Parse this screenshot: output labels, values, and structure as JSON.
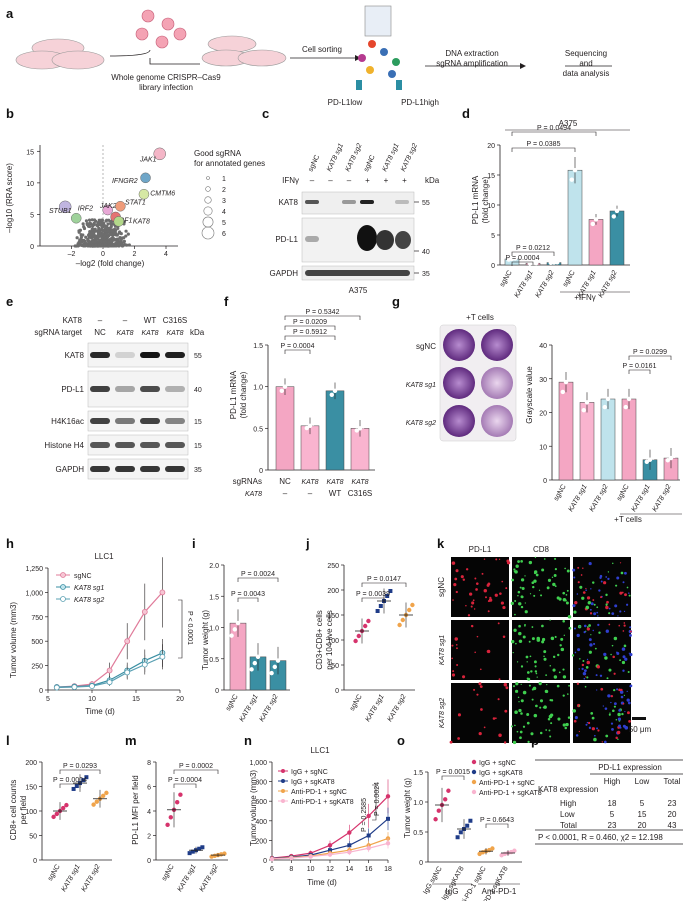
{
  "panels": [
    "a",
    "b",
    "c",
    "d",
    "e",
    "f",
    "g",
    "h",
    "i",
    "j",
    "k",
    "l",
    "m",
    "n",
    "o",
    "p"
  ],
  "a": {
    "library": "Whole genome CRISPR–Cas9\nlibrary infection",
    "sorting": "Cell sorting",
    "extraction": "DNA extraction\nsgRNA amplification",
    "sequencing": "Sequencing\nand\ndata analysis",
    "low": "PD-L1low",
    "high": "PD-L1high"
  },
  "b": {
    "ylabel": "–log10 (RRA score)",
    "xlabel": "–log2 (fold change)",
    "legend_title": "Good sgRNA\nfor annotated genes",
    "legend_values": [
      "1",
      "2",
      "3",
      "4",
      "5",
      "6"
    ],
    "genes": [
      "JAK1",
      "IFNGR2",
      "CMTM6",
      "JAK2",
      "STAT1",
      "IRF1",
      "KAT8",
      "STUB1",
      "IRF2"
    ],
    "yticks": [
      "0",
      "5",
      "10",
      "15"
    ],
    "xticks": [
      "–2",
      "0",
      "2",
      "4"
    ]
  },
  "c": {
    "lanes": [
      "sgNC",
      "KAT8 sg1",
      "KAT8 sg2",
      "sgNC",
      "KAT8 sg1",
      "KAT8 sg2"
    ],
    "ifng_label": "IFNγ",
    "ifng": [
      "–",
      "–",
      "–",
      "+",
      "+",
      "+"
    ],
    "rows": [
      "KAT8",
      "PD-L1",
      "GAPDH"
    ],
    "kda_label": "kDa",
    "kda": [
      "55",
      "40",
      "35"
    ],
    "cell": "A375"
  },
  "d": {
    "title": "A375",
    "ylabel": "PD-L1 mRNA\n(fold change)",
    "yticks": [
      "0",
      "5",
      "10",
      "15",
      "20"
    ],
    "categories": [
      "sgNC",
      "KAT8 sg1",
      "KAT8 sg2",
      "sgNC",
      "KAT8 sg1",
      "KAT8 sg2"
    ],
    "group_label": "+IFNγ",
    "pvals": [
      "P = 0.0494",
      "P = 0.0385",
      "P = 0.0212",
      "P = 0.0004"
    ]
  },
  "e": {
    "kat8_label": "KAT8",
    "kat8": [
      "–",
      "–",
      "WT",
      "C316S"
    ],
    "sgrna_label": "sgRNA target",
    "sgrna": [
      "NC",
      "KAT8",
      "KAT8",
      "KAT8"
    ],
    "rows": [
      "KAT8",
      "PD-L1",
      "H4K16ac",
      "Histone H4",
      "GAPDH"
    ],
    "kda_label": "kDa",
    "kda": [
      "55",
      "40",
      "15",
      "15",
      "35"
    ]
  },
  "f": {
    "ylabel": "PD-L1 mRNA\n(fold change)",
    "yticks": [
      "0",
      "0.5",
      "1.0",
      "1.5"
    ],
    "sgrna_label": "sgRNAs",
    "sgrna": [
      "NC",
      "KAT8",
      "KAT8",
      "KAT8"
    ],
    "kat8_label": "KAT8",
    "kat8": [
      "–",
      "–",
      "WT",
      "C316S"
    ],
    "pvals": [
      "P = 0.5342",
      "P = 0.0209",
      "P = 0.5912",
      "P = 0.0004"
    ]
  },
  "g": {
    "plus_t": "+T cells",
    "rows": [
      "sgNC",
      "KAT8 sg1",
      "KAT8 sg2"
    ],
    "ylabel": "Grayscale value",
    "yticks": [
      "0",
      "10",
      "20",
      "30",
      "40"
    ],
    "categories": [
      "sgNC",
      "KAT8 sg1",
      "KAT8 sg2",
      "sgNC",
      "KAT8 sg1",
      "KAT8 sg2"
    ],
    "group_label": "+T cells",
    "pvals": [
      "P = 0.0299",
      "P = 0.0161"
    ]
  },
  "h": {
    "title": "LLC1",
    "ylabel": "Tumor volume (mm3)",
    "xlabel": "Time (d)",
    "yticks": [
      "0",
      "250",
      "500",
      "750",
      "1,000",
      "1,250"
    ],
    "xticks": [
      "5",
      "10",
      "15",
      "20"
    ],
    "legend": [
      "sgNC",
      "KAT8 sg1",
      "KAT8 sg2"
    ],
    "pvals": [
      "P < 0.0001",
      "P < 0.0001"
    ]
  },
  "i": {
    "ylabel": "Tumor weight (g)",
    "yticks": [
      "0",
      "0.5",
      "1.0",
      "1.5",
      "2.0"
    ],
    "categories": [
      "sgNC",
      "KAT8 sg1",
      "KAT8 sg2"
    ],
    "pvals": [
      "P = 0.0024",
      "P = 0.0043"
    ]
  },
  "j": {
    "ylabel": "CD3+CD8+ cells\nper 104 live cells",
    "yticks": [
      "0",
      "50",
      "100",
      "150",
      "200",
      "250"
    ],
    "categories": [
      "sgNC",
      "KAT8 sg1",
      "KAT8 sg2"
    ],
    "pvals": [
      "P = 0.0147",
      "P = 0.0039"
    ]
  },
  "k": {
    "cols": [
      "PD-L1",
      "CD8"
    ],
    "rows": [
      "sgNC",
      "KAT8 sg1",
      "KAT8 sg2"
    ],
    "scale": "50 μm"
  },
  "l": {
    "ylabel": "CD8+ cell counts\nper field",
    "yticks": [
      "0",
      "50",
      "100",
      "150",
      "200"
    ],
    "categories": [
      "sgNC",
      "KAT8 sg1",
      "KAT8 sg2"
    ],
    "pvals": [
      "P = 0.0293",
      "P = 0.0004"
    ]
  },
  "m": {
    "ylabel": "PD-L1 MFI per field",
    "yticks": [
      "0",
      "2",
      "4",
      "6",
      "8"
    ],
    "categories": [
      "sgNC",
      "KAT8 sg1",
      "KAT8 sg2"
    ],
    "pvals": [
      "P = 0.0002",
      "P = 0.0004"
    ]
  },
  "n": {
    "title": "LLC1",
    "ylabel": "Tumor volume (mm3)",
    "xlabel": "Time (d)",
    "yticks": [
      "0",
      "200",
      "400",
      "600",
      "800",
      "1,000"
    ],
    "xticks": [
      "6",
      "8",
      "10",
      "12",
      "14",
      "16",
      "18"
    ],
    "legend": [
      "IgG + sgNC",
      "IgG + sgKAT8",
      "Anti-PD-1 + sgNC",
      "Anti-PD-1 + sgKAT8"
    ],
    "pvals": [
      "P = 0.0024",
      "P = 0.2585"
    ]
  },
  "o": {
    "ylabel": "Tumor weight (g)",
    "yticks": [
      "0",
      "0.5",
      "1.0",
      "1.5"
    ],
    "legend": [
      "IgG + sgNC",
      "IgG + sgKAT8",
      "Anti-PD-1 + sgNC",
      "Anti-PD-1 + sgKAT8"
    ],
    "categories": [
      "sgNC",
      "sgKAT8",
      "sgNC",
      "sgKAT8"
    ],
    "groups": [
      "IgG",
      "Anti-PD-1"
    ],
    "pvals": [
      "P = 0.0015",
      "P = 0.6643"
    ]
  },
  "p": {
    "title": "PD-L1 expression",
    "header": [
      "KAT8 expression",
      "High",
      "Low",
      "Total"
    ],
    "rows": [
      [
        "High",
        "18",
        "5",
        "23"
      ],
      [
        "Low",
        "5",
        "15",
        "20"
      ],
      [
        "Total",
        "23",
        "20",
        "43"
      ]
    ],
    "footer": "P < 0.0001, R = 0.460, χ2 = 12.198"
  },
  "colors": {
    "pink": "#f4a6c3",
    "blue": "#3a8fa3",
    "lightblue": "#bfe3ec",
    "magenta": "#d6336c",
    "navy": "#1f3c88",
    "orange": "#f0a44b",
    "lightpink": "#f9b4cf"
  },
  "chart_data": [
    {
      "panel": "d",
      "type": "bar",
      "categories": [
        "sgNC",
        "KAT8 sg1",
        "KAT8 sg2",
        "sgNC",
        "KAT8 sg1",
        "KAT8 sg2"
      ],
      "values": [
        1.0,
        0.3,
        0.4,
        15.8,
        7.6,
        9.0
      ],
      "ylim": [
        0,
        20
      ]
    },
    {
      "panel": "f",
      "type": "bar",
      "categories": [
        "NC",
        "KAT8",
        "KAT8 WT",
        "KAT8 C316S"
      ],
      "values": [
        1.0,
        0.53,
        0.95,
        0.5
      ],
      "ylim": [
        0,
        1.5
      ]
    },
    {
      "panel": "g",
      "type": "bar",
      "categories": [
        "sgNC",
        "KAT8 sg1",
        "KAT8 sg2",
        "sgNC",
        "KAT8 sg1",
        "KAT8 sg2"
      ],
      "values": [
        29,
        23,
        24,
        24,
        6,
        6.5
      ],
      "ylim": [
        0,
        40
      ]
    },
    {
      "panel": "h",
      "type": "line",
      "x": [
        6,
        8,
        10,
        12,
        14,
        16,
        18
      ],
      "series": [
        {
          "name": "sgNC",
          "values": [
            30,
            40,
            60,
            200,
            500,
            800,
            1000
          ]
        },
        {
          "name": "KAT8 sg1",
          "values": [
            30,
            35,
            45,
            100,
            200,
            300,
            380
          ]
        },
        {
          "name": "KAT8 sg2",
          "values": [
            25,
            30,
            40,
            80,
            180,
            260,
            340
          ]
        }
      ],
      "ylim": [
        0,
        1250
      ]
    },
    {
      "panel": "i",
      "type": "bar",
      "categories": [
        "sgNC",
        "KAT8 sg1",
        "KAT8 sg2"
      ],
      "values": [
        1.07,
        0.53,
        0.47
      ],
      "ylim": [
        0,
        2.0
      ]
    },
    {
      "panel": "j",
      "type": "scatter",
      "categories": [
        "sgNC",
        "KAT8 sg1",
        "KAT8 sg2"
      ],
      "values": [
        118,
        178,
        150
      ],
      "ylim": [
        0,
        250
      ]
    },
    {
      "panel": "l",
      "type": "scatter",
      "categories": [
        "sgNC",
        "KAT8 sg1",
        "KAT8 sg2"
      ],
      "values": [
        100,
        157,
        125
      ],
      "ylim": [
        0,
        200
      ]
    },
    {
      "panel": "m",
      "type": "scatter",
      "categories": [
        "sgNC",
        "KAT8 sg1",
        "KAT8 sg2"
      ],
      "values": [
        4.1,
        0.8,
        0.4
      ],
      "ylim": [
        0,
        8
      ]
    },
    {
      "panel": "n",
      "type": "line",
      "x": [
        6,
        8,
        10,
        12,
        14,
        16,
        18
      ],
      "series": [
        {
          "name": "IgG + sgNC",
          "values": [
            20,
            40,
            70,
            150,
            280,
            450,
            650
          ]
        },
        {
          "name": "IgG + sgKAT8",
          "values": [
            15,
            30,
            50,
            100,
            150,
            250,
            420
          ]
        },
        {
          "name": "Anti-PD-1 + sgNC",
          "values": [
            12,
            25,
            40,
            70,
            100,
            150,
            220
          ]
        },
        {
          "name": "Anti-PD-1 + sgKAT8",
          "values": [
            10,
            20,
            35,
            55,
            80,
            120,
            170
          ]
        }
      ],
      "ylim": [
        0,
        1000
      ]
    },
    {
      "panel": "o",
      "type": "scatter",
      "categories": [
        "IgG sgNC",
        "IgG sgKAT8",
        "Anti-PD-1 sgNC",
        "Anti-PD-1 sgKAT8"
      ],
      "values": [
        0.95,
        0.55,
        0.18,
        0.15
      ],
      "ylim": [
        0,
        1.5
      ]
    }
  ]
}
